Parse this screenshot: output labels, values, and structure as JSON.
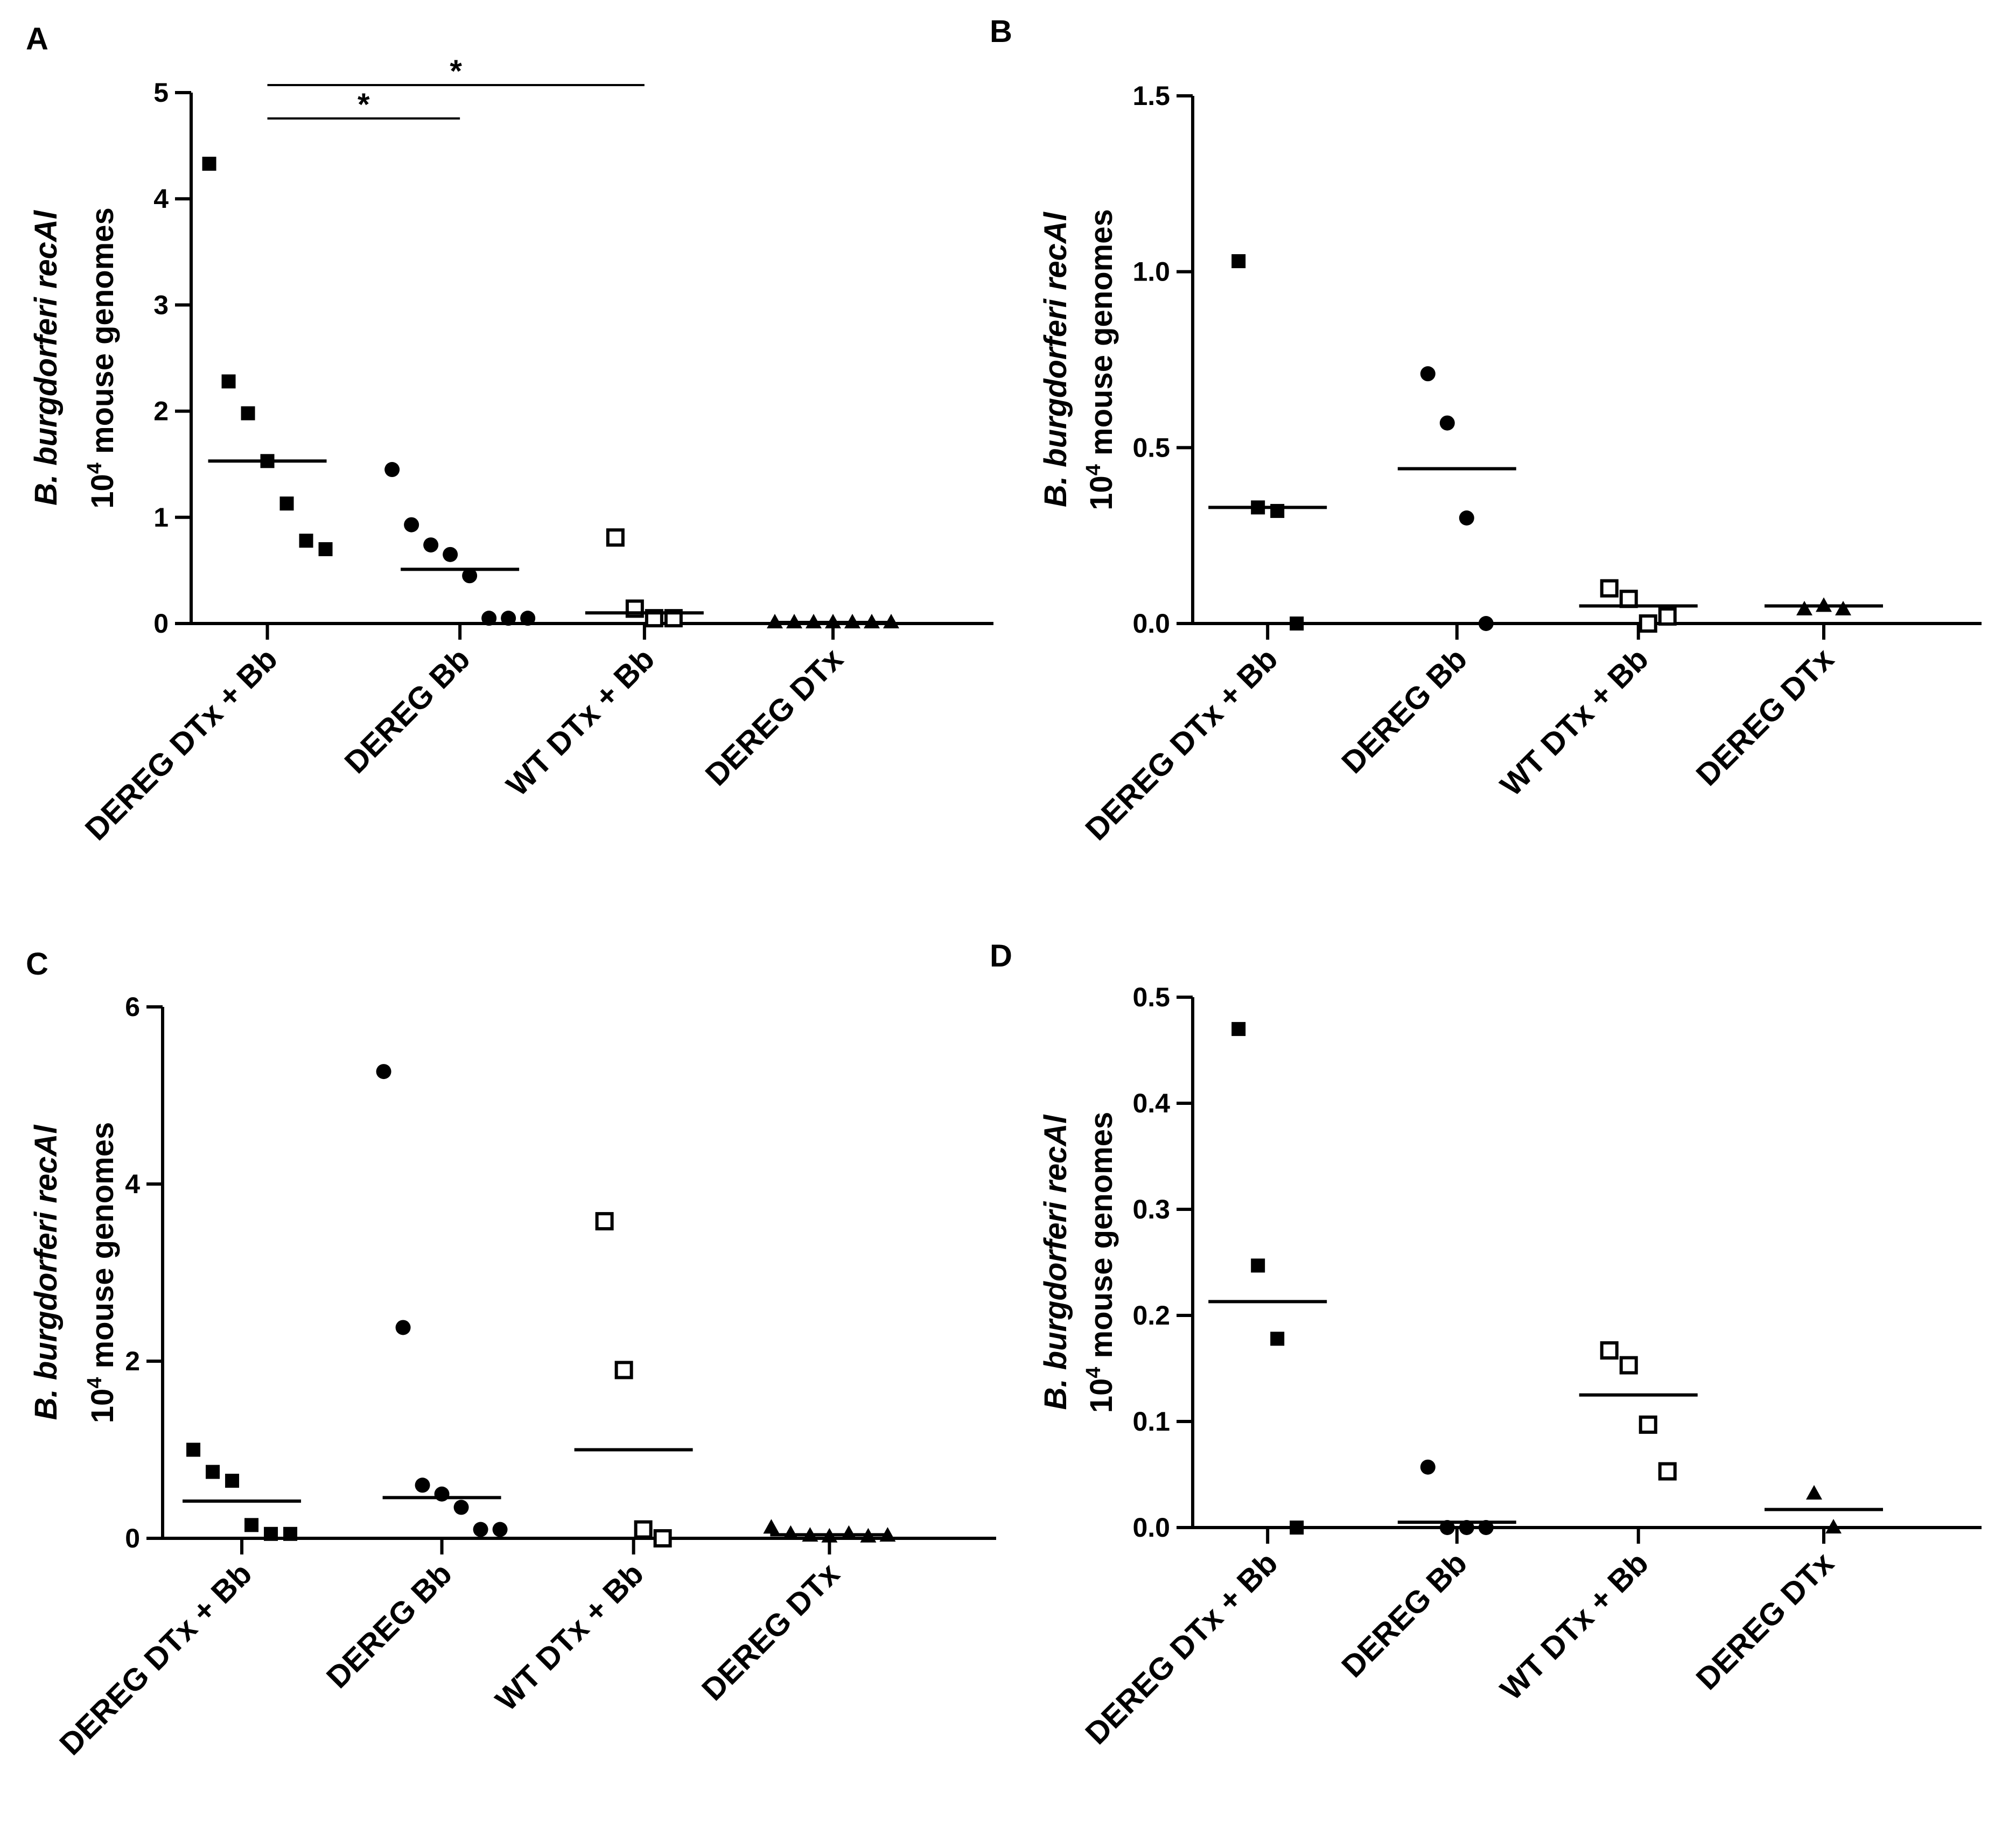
{
  "figure": {
    "categories": [
      "DEREG DTx + Bb",
      "DEREG Bb",
      "WT DTx + Bb",
      "DEREG DTx"
    ],
    "ylabel": {
      "italic_line": "B. burgdorferi recAl",
      "base": "10",
      "superscript": "4",
      "rest": "mouse genomes"
    },
    "markers": [
      "filled-square",
      "filled-circle",
      "open-square",
      "filled-triangle"
    ]
  },
  "chart_data": [
    {
      "panel": "A",
      "type": "scatter",
      "ylim": [
        0,
        5
      ],
      "yticks": [
        0,
        1,
        2,
        3,
        4,
        5
      ],
      "tick_labels": [
        "0",
        "1",
        "2",
        "3",
        "4",
        "5"
      ],
      "series": [
        {
          "name": "DEREG DTx + Bb",
          "values": [
            4.33,
            2.28,
            1.98,
            1.53,
            1.13,
            0.78,
            0.7
          ],
          "mean": 1.53
        },
        {
          "name": "DEREG Bb",
          "values": [
            1.45,
            0.93,
            0.74,
            0.65,
            0.45,
            0.05,
            0.05,
            0.05
          ],
          "mean": 0.51
        },
        {
          "name": "WT DTx + Bb",
          "values": [
            0.81,
            0.14,
            0.05,
            0.05
          ],
          "mean": 0.1
        },
        {
          "name": "DEREG DTx",
          "values": [
            0.01,
            0.01,
            0.01,
            0.01,
            0.01,
            0.01,
            0.01
          ],
          "mean": 0.01
        }
      ],
      "significance": [
        {
          "from": "DEREG DTx + Bb",
          "to": "DEREG Bb",
          "label": "*"
        },
        {
          "from": "DEREG DTx + Bb",
          "to": "WT DTx + Bb",
          "label": "*"
        }
      ]
    },
    {
      "panel": "B",
      "type": "scatter",
      "ylim": [
        0,
        1.5
      ],
      "yticks": [
        0,
        0.5,
        1.0,
        1.5
      ],
      "tick_labels": [
        "0.0",
        "0.5",
        "1.0",
        "1.5"
      ],
      "series": [
        {
          "name": "DEREG DTx + Bb",
          "values": [
            1.03,
            0.33,
            0.32,
            0.0
          ],
          "mean": 0.33
        },
        {
          "name": "DEREG Bb",
          "values": [
            0.71,
            0.57,
            0.3,
            0.0
          ],
          "mean": 0.44
        },
        {
          "name": "WT DTx + Bb",
          "values": [
            0.1,
            0.07,
            0.0,
            0.02
          ],
          "mean": 0.05
        },
        {
          "name": "DEREG DTx",
          "values": [
            0.04,
            0.05,
            0.04
          ],
          "mean": 0.05
        }
      ]
    },
    {
      "panel": "C",
      "type": "scatter",
      "ylim": [
        0,
        6
      ],
      "yticks": [
        0,
        2,
        4,
        6
      ],
      "tick_labels": [
        "0",
        "2",
        "4",
        "6"
      ],
      "series": [
        {
          "name": "DEREG DTx + Bb",
          "values": [
            1.0,
            0.75,
            0.65,
            0.15,
            0.05,
            0.05
          ],
          "mean": 0.42
        },
        {
          "name": "DEREG Bb",
          "values": [
            5.27,
            2.38,
            0.6,
            0.5,
            0.35,
            0.1,
            0.1
          ],
          "mean": 0.46
        },
        {
          "name": "WT DTx + Bb",
          "values": [
            3.58,
            1.9,
            0.1,
            0.0
          ],
          "mean": 1.0
        },
        {
          "name": "DEREG DTx",
          "values": [
            0.12,
            0.05,
            0.03,
            0.02,
            0.05,
            0.02,
            0.03
          ],
          "mean": 0.04
        }
      ]
    },
    {
      "panel": "D",
      "type": "scatter",
      "ylim": [
        0,
        0.5
      ],
      "yticks": [
        0,
        0.1,
        0.2,
        0.3,
        0.4,
        0.5
      ],
      "tick_labels": [
        "0.0",
        "0.1",
        "0.2",
        "0.3",
        "0.4",
        "0.5"
      ],
      "series": [
        {
          "name": "DEREG DTx + Bb",
          "values": [
            0.47,
            0.247,
            0.178,
            0.0
          ],
          "mean": 0.213
        },
        {
          "name": "DEREG Bb",
          "values": [
            0.057,
            0.0,
            0.0,
            0.0
          ],
          "mean": 0.005
        },
        {
          "name": "WT DTx + Bb",
          "values": [
            0.167,
            0.153,
            0.097,
            0.053
          ],
          "mean": 0.125
        },
        {
          "name": "DEREG DTx",
          "values": [
            0.032,
            0.0
          ],
          "mean": 0.017
        }
      ]
    }
  ]
}
